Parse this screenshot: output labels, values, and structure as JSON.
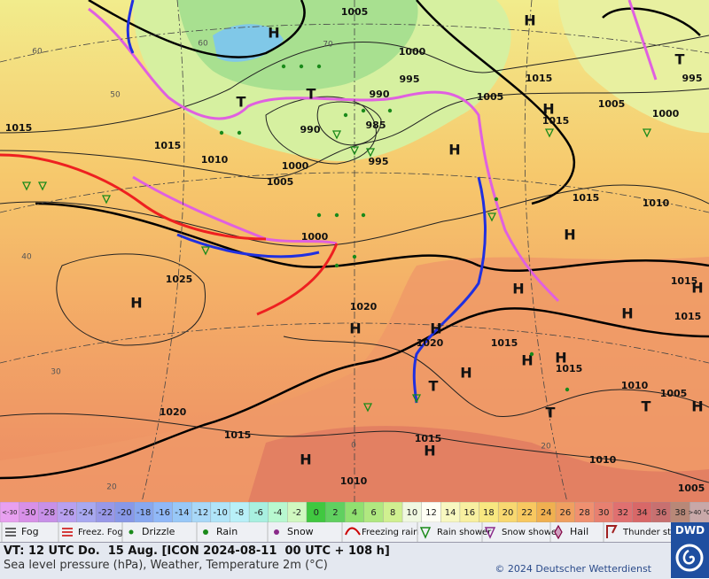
{
  "map": {
    "pressure_labels": [
      "1005",
      "1000",
      "995",
      "990",
      "985",
      "990",
      "995",
      "1000",
      "1005",
      "1010",
      "1015",
      "1015",
      "1000",
      "1025",
      "1020",
      "1020",
      "1015",
      "1015",
      "1010",
      "1005",
      "1020",
      "1015",
      "1015",
      "1010",
      "1010",
      "1005",
      "1015",
      "1005",
      "1015",
      "1005",
      "1000",
      "995",
      "1015",
      "1010",
      "1015",
      "1015"
    ],
    "centers": [
      "H",
      "H",
      "T",
      "T",
      "T",
      "H",
      "H",
      "H",
      "H",
      "H",
      "H",
      "H",
      "H",
      "H",
      "H",
      "H",
      "H",
      "T",
      "T",
      "H",
      "T",
      "H",
      "H"
    ],
    "grid_labels": [
      "60",
      "50",
      "40",
      "30",
      "20",
      "60",
      "70",
      "0",
      "20"
    ]
  },
  "temperature_scale": {
    "cells": [
      {
        "label": "<-30",
        "color": "#e8a0f0"
      },
      {
        "label": "-30",
        "color": "#d890e8"
      },
      {
        "label": "-28",
        "color": "#c890e8"
      },
      {
        "label": "-26",
        "color": "#b8a0f0"
      },
      {
        "label": "-24",
        "color": "#a8a8f0"
      },
      {
        "label": "-22",
        "color": "#9898e8"
      },
      {
        "label": "-20",
        "color": "#8898e8"
      },
      {
        "label": "-18",
        "color": "#88a8f0"
      },
      {
        "label": "-16",
        "color": "#90b8f8"
      },
      {
        "label": "-14",
        "color": "#98c8f8"
      },
      {
        "label": "-12",
        "color": "#a8d8f8"
      },
      {
        "label": "-10",
        "color": "#b0e4f8"
      },
      {
        "label": "-8",
        "color": "#b8f0f8"
      },
      {
        "label": "-6",
        "color": "#a8f0e0"
      },
      {
        "label": "-4",
        "color": "#b8f8d0"
      },
      {
        "label": "-2",
        "color": "#d0f8c0"
      },
      {
        "label": "0",
        "color": "#40c840"
      },
      {
        "label": "2",
        "color": "#60d060"
      },
      {
        "label": "4",
        "color": "#90e070"
      },
      {
        "label": "6",
        "color": "#b0e880"
      },
      {
        "label": "8",
        "color": "#d0f090"
      },
      {
        "label": "10",
        "color": "#f0f8e0"
      },
      {
        "label": "12",
        "color": "#fffff4"
      },
      {
        "label": "14",
        "color": "#f8f8c0"
      },
      {
        "label": "16",
        "color": "#f8f0a0"
      },
      {
        "label": "18",
        "color": "#f8e880"
      },
      {
        "label": "20",
        "color": "#f8d870"
      },
      {
        "label": "22",
        "color": "#f8c860"
      },
      {
        "label": "24",
        "color": "#f0b050"
      },
      {
        "label": "26",
        "color": "#f0a060"
      },
      {
        "label": "28",
        "color": "#f09070"
      },
      {
        "label": "30",
        "color": "#e88070"
      },
      {
        "label": "32",
        "color": "#e07070"
      },
      {
        "label": "34",
        "color": "#d86868"
      },
      {
        "label": "36",
        "color": "#c87070"
      },
      {
        "label": "38",
        "color": "#b88878"
      },
      {
        "label": ">40 °C",
        "color": "#c8a8a8"
      }
    ]
  },
  "weather_legend": [
    "Fog",
    "Freez. Fog",
    "Drizzle",
    "Rain",
    "Snow",
    "Freezing rain",
    "Rain shower",
    "Snow shower",
    "Hail",
    "Thunder storm"
  ],
  "footer": {
    "valid_time": "VT: 12 UTC Do.  15 Aug. [ICON 2024-08-11  00 UTC + 108 h]",
    "description": "Sea level pressure (hPa), Weather, Temperature 2m (°C)",
    "copyright": "© 2024 Deutscher Wetterdienst",
    "logo": "DWD"
  }
}
